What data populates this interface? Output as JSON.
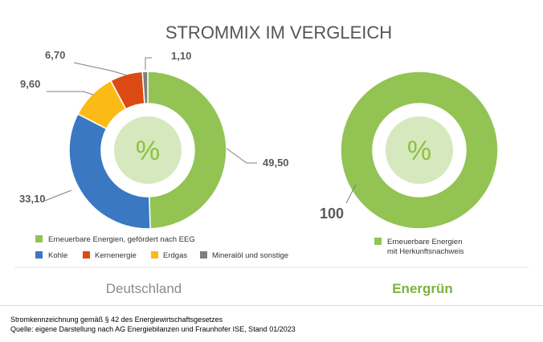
{
  "title": "STROMMIX IM VERGLEICH",
  "colors": {
    "renewable": "#92c353",
    "coal": "#3a78c2",
    "nuclear": "#dc4a14",
    "gas": "#fbba16",
    "oil": "#7f7f7f",
    "center_fill": "#d6e8be",
    "percent_text": "#8dc13f"
  },
  "chart_data": [
    {
      "type": "pie",
      "variant": "donut",
      "name": "Deutschland",
      "center_label": "%",
      "slices": [
        {
          "label": "Erneuerbare Energien, gefördert nach EEG",
          "value": 49.5,
          "value_label": "49,50",
          "color": "#92c353"
        },
        {
          "label": "Kohle",
          "value": 33.1,
          "value_label": "33,10",
          "color": "#3a78c2"
        },
        {
          "label": "Erdgas",
          "value": 9.6,
          "value_label": "9,60",
          "color": "#fbba16"
        },
        {
          "label": "Kernenergie",
          "value": 6.7,
          "value_label": "6,70",
          "color": "#dc4a14"
        },
        {
          "label": "Mineralöl und sonstige",
          "value": 1.1,
          "value_label": "1,10",
          "color": "#7f7f7f"
        }
      ],
      "legend": [
        {
          "label": "Erneuerbare Energien, gefördert nach EEG",
          "color": "#92c353"
        },
        {
          "label": "Kohle",
          "color": "#3a78c2"
        },
        {
          "label": "Kernenergie",
          "color": "#dc4a14"
        },
        {
          "label": "Erdgas",
          "color": "#fbba16"
        },
        {
          "label": "Mineralöl und sonstige",
          "color": "#7f7f7f"
        }
      ]
    },
    {
      "type": "pie",
      "variant": "donut",
      "name": "Energrün",
      "center_label": "%",
      "slices": [
        {
          "label": "Erneuerbare Energien mit Herkunftsnachweis",
          "value": 100,
          "value_label": "100",
          "color": "#92c353"
        }
      ],
      "legend": [
        {
          "label_lines": [
            "Erneuerbare Energien",
            "mit Herkunftsnachweis"
          ],
          "color": "#92c353"
        }
      ]
    }
  ],
  "footer": {
    "line1": "Stromkennzeichnung gemäß § 42 des Energiewirtschaftsgesetzes",
    "line2": "Quelle: eigene Darstellung nach AG Energiebilanzen und Fraunhofer ISE, Stand 01/2023"
  }
}
